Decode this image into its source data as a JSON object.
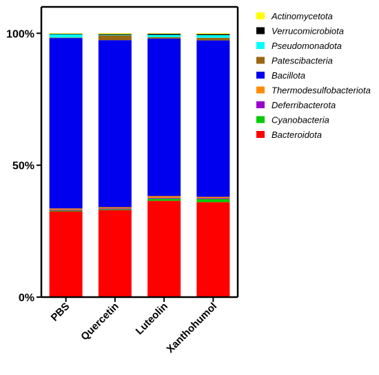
{
  "chart_data": {
    "type": "bar",
    "stacked": true,
    "title": "",
    "xlabel": "",
    "ylabel": "",
    "ylim": [
      0,
      110
    ],
    "yticks": [
      0,
      50,
      100
    ],
    "ytick_labels": [
      "0%",
      "50%",
      "100%"
    ],
    "grid": false,
    "legend_placement": "right",
    "categories": [
      "PBS",
      "Quercetin",
      "Luteolin",
      "Xanthohumol"
    ],
    "series": [
      {
        "name": "Bacteroidota",
        "color": "#ff0000",
        "values": [
          32.5,
          33.0,
          36.5,
          36.0
        ]
      },
      {
        "name": "Cyanobacteria",
        "color": "#00cc00",
        "values": [
          0.3,
          0.3,
          0.8,
          1.2
        ]
      },
      {
        "name": "Deferribacterota",
        "color": "#9900cc",
        "values": [
          0.3,
          0.3,
          0.3,
          0.3
        ]
      },
      {
        "name": "Thermodesulfobacteriota",
        "color": "#ff8c00",
        "values": [
          0.5,
          0.5,
          0.7,
          0.5
        ]
      },
      {
        "name": "Bacillota",
        "color": "#0000ee",
        "values": [
          64.6,
          63.3,
          59.7,
          59.3
        ]
      },
      {
        "name": "Patescibacteria",
        "color": "#996611",
        "values": [
          0.2,
          1.8,
          0.5,
          1.0
        ]
      },
      {
        "name": "Pseudomonadota",
        "color": "#00ffff",
        "values": [
          1.2,
          0.2,
          0.9,
          1.0
        ]
      },
      {
        "name": "Verrucomicrobiota",
        "color": "#000000",
        "values": [
          0.2,
          0.3,
          0.4,
          0.4
        ]
      },
      {
        "name": "Actinomycetota",
        "color": "#ffff00",
        "values": [
          0.2,
          0.3,
          0.2,
          0.3
        ]
      }
    ]
  }
}
